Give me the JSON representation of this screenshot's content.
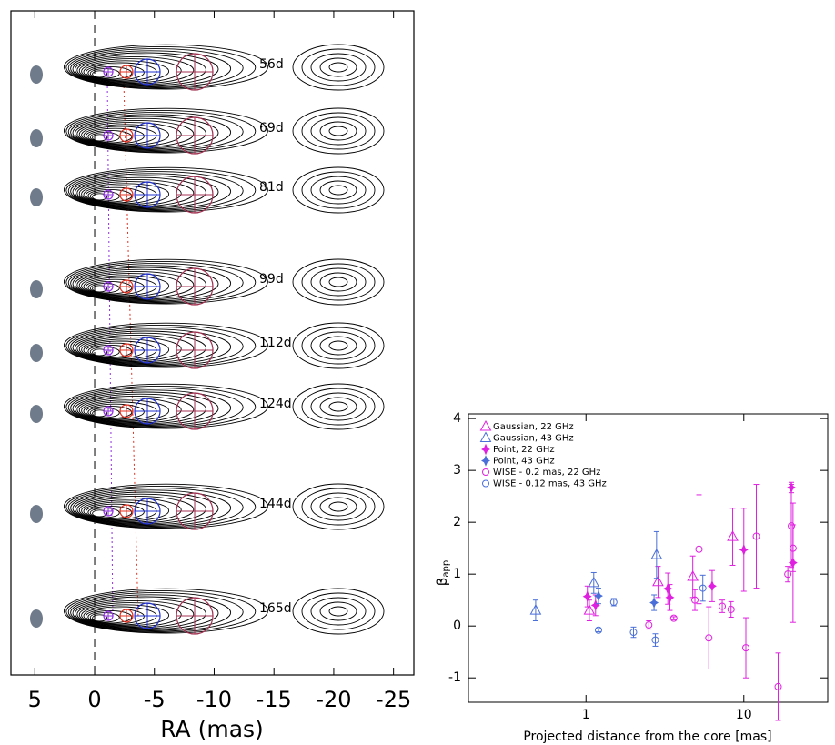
{
  "chart_data": [
    {
      "type": "contour-map",
      "xlabel": "RA (mas)",
      "xlim": [
        7,
        -26.7
      ],
      "xticks": [
        5,
        0,
        -5,
        -10,
        -15,
        -20,
        -25
      ],
      "epochs": [
        "56d",
        "69d",
        "81d",
        "99d",
        "112d",
        "124d",
        "144d",
        "165d"
      ]
    },
    {
      "type": "scatter",
      "xlabel": "Projected distance from the core [mas]",
      "ylabel": {
        "symbol": "β",
        "subscript": "app"
      },
      "xscale": "log",
      "xlim": [
        0.18,
        34
      ],
      "xticks": [
        1,
        10
      ],
      "ylim": [
        -1.47,
        4.09
      ],
      "yticks": [
        -1,
        0,
        1,
        2,
        3,
        4
      ],
      "legend": "upper left",
      "series": [
        {
          "name": "Gaussian, 22 GHz",
          "color": "#e020e0",
          "marker": "triangle",
          "x": [
            1.05,
            2.86,
            4.75,
            8.5
          ],
          "values": [
            0.3,
            0.85,
            0.95,
            1.72
          ],
          "errors": [
            0.2,
            0.3,
            0.4,
            0.55
          ]
        },
        {
          "name": "Gaussian, 43 GHz",
          "color": "#4a6fd8",
          "marker": "triangle",
          "x": [
            0.48,
            1.12,
            2.8
          ],
          "values": [
            0.3,
            0.83,
            1.37
          ],
          "errors": [
            0.2,
            0.2,
            0.45
          ]
        },
        {
          "name": "Point, 22 GHz",
          "color": "#e020e0",
          "marker": "star",
          "x": [
            1.02,
            1.15,
            3.3,
            3.4,
            6.3,
            10,
            20,
            20.5
          ],
          "values": [
            0.57,
            0.4,
            0.72,
            0.55,
            0.77,
            1.47,
            2.67,
            1.22
          ],
          "errors": [
            0.2,
            0.2,
            0.3,
            0.25,
            0.3,
            0.8,
            0.1,
            1.15
          ]
        },
        {
          "name": "Point, 43 GHz",
          "color": "#4a6fd8",
          "marker": "star",
          "x": [
            1.2,
            2.7
          ],
          "values": [
            0.58,
            0.45
          ],
          "errors": [
            0.15,
            0.15
          ]
        },
        {
          "name": "WISE - 0.2 mas, 22 GHz",
          "color": "#e020e0",
          "marker": "circle",
          "x": [
            2.5,
            3.6,
            4.9,
            5.2,
            6.0,
            7.3,
            8.3,
            10.3,
            12,
            16.5,
            19,
            20,
            20.5
          ],
          "values": [
            0.02,
            0.15,
            0.5,
            1.48,
            -0.23,
            0.38,
            0.32,
            -0.42,
            1.73,
            -1.17,
            1.0,
            1.93,
            1.5
          ],
          "errors": [
            0.08,
            0.03,
            0.2,
            1.05,
            0.6,
            0.12,
            0.15,
            0.58,
            1.0,
            0.65,
            0.15,
            0.8,
            0.45
          ]
        },
        {
          "name": "WISE - 0.12 mas, 43 GHz",
          "color": "#4a6fd8",
          "marker": "circle",
          "x": [
            1.2,
            1.5,
            2.0,
            2.75,
            5.5
          ],
          "values": [
            -0.08,
            0.46,
            -0.12,
            -0.27,
            0.73
          ],
          "errors": [
            0.03,
            0.07,
            0.1,
            0.12,
            0.25
          ]
        }
      ]
    }
  ]
}
